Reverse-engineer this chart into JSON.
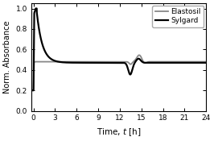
{
  "title": "",
  "xlabel": "Time, $t$ [h]",
  "ylabel": "Norm. Absorbance",
  "xlim": [
    -0.3,
    24
  ],
  "ylim": [
    0.0,
    1.05
  ],
  "xticks": [
    0,
    3,
    6,
    9,
    12,
    15,
    18,
    21,
    24
  ],
  "yticks": [
    0.0,
    0.2,
    0.4,
    0.6,
    0.8,
    1.0
  ],
  "legend_labels": [
    "Sylgard",
    "Elastosil"
  ],
  "sylgard_color": "#000000",
  "elastosil_color": "#888888",
  "background_color": "#ffffff",
  "linewidth_sylgard": 1.6,
  "linewidth_elastosil": 1.3,
  "figsize": [
    2.66,
    1.75
  ],
  "dpi": 100
}
